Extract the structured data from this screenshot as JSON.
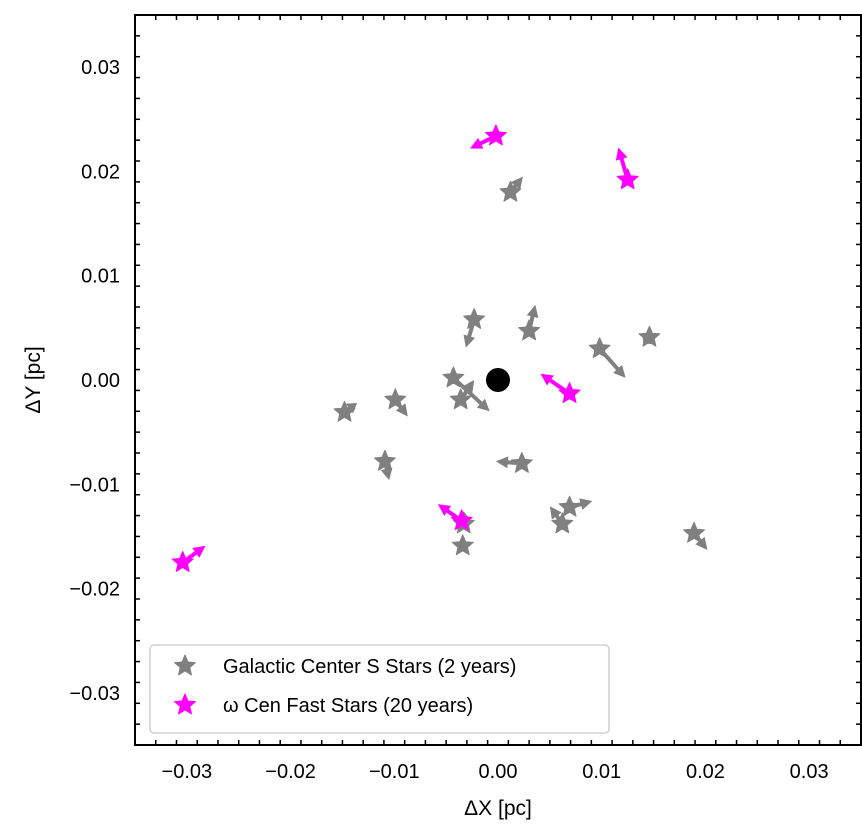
{
  "chart_data": {
    "type": "scatter",
    "xlabel": "ΔX [pc]",
    "ylabel": "ΔY [pc]",
    "xlim": [
      -0.035,
      0.035
    ],
    "ylim": [
      -0.035,
      0.035
    ],
    "xticks": [
      -0.03,
      -0.02,
      -0.01,
      0.0,
      0.01,
      0.02,
      0.03
    ],
    "yticks": [
      -0.03,
      -0.02,
      -0.01,
      0.0,
      0.01,
      0.02,
      0.03
    ],
    "xtick_labels": [
      "−0.03",
      "−0.02",
      "−0.01",
      "0.00",
      "0.01",
      "0.02",
      "0.03"
    ],
    "ytick_labels": [
      "−0.03",
      "−0.02",
      "−0.01",
      "0.00",
      "0.01",
      "0.02",
      "0.03"
    ],
    "legend_position": "bottom-left",
    "center": {
      "x": 0.0,
      "y": 0.0,
      "color": "#000000"
    },
    "series": [
      {
        "name": "Galactic Center S Stars (2 years)",
        "color": "#808080",
        "marker": "star",
        "points": [
          {
            "x": 0.0012,
            "y": 0.018,
            "dx": 0.0012,
            "dy": 0.0015
          },
          {
            "x": -0.0023,
            "y": 0.0058,
            "dx": -0.0008,
            "dy": -0.0027
          },
          {
            "x": 0.003,
            "y": 0.0047,
            "dx": 0.0006,
            "dy": 0.0025
          },
          {
            "x": 0.0098,
            "y": 0.003,
            "dx": 0.0025,
            "dy": -0.0028
          },
          {
            "x": 0.0146,
            "y": 0.0041,
            "dx": -0.0006,
            "dy": -0.0006
          },
          {
            "x": -0.0043,
            "y": 0.0002,
            "dx": 0.0035,
            "dy": -0.0032
          },
          {
            "x": -0.0036,
            "y": -0.0019,
            "dx": 0.0013,
            "dy": 0.0019
          },
          {
            "x": -0.0148,
            "y": -0.0031,
            "dx": 0.0012,
            "dy": 0.0009
          },
          {
            "x": -0.0099,
            "y": -0.0019,
            "dx": 0.0012,
            "dy": -0.0016
          },
          {
            "x": -0.0109,
            "y": -0.0078,
            "dx": 0.0004,
            "dy": -0.0018
          },
          {
            "x": 0.0023,
            "y": -0.008,
            "dx": -0.0025,
            "dy": 0.0002
          },
          {
            "x": 0.0069,
            "y": -0.0122,
            "dx": 0.0022,
            "dy": 0.0006
          },
          {
            "x": 0.0062,
            "y": -0.0138,
            "dx": -0.0012,
            "dy": 0.0017
          },
          {
            "x": -0.0033,
            "y": -0.0138,
            "dx": 0.0,
            "dy": 0.0012
          },
          {
            "x": -0.0034,
            "y": -0.0159,
            "dx": 0.0,
            "dy": 0.0
          },
          {
            "x": 0.0189,
            "y": -0.0147,
            "dx": 0.0013,
            "dy": -0.0016
          }
        ]
      },
      {
        "name": "ω Cen Fast Stars (20 years)",
        "color": "#ff00ff",
        "marker": "star",
        "points": [
          {
            "x": -0.0002,
            "y": 0.0234,
            "dx": -0.0025,
            "dy": -0.0012
          },
          {
            "x": 0.0125,
            "y": 0.0192,
            "dx": -0.0009,
            "dy": 0.0031
          },
          {
            "x": 0.0069,
            "y": -0.0013,
            "dx": -0.0028,
            "dy": 0.0019
          },
          {
            "x": -0.0035,
            "y": -0.0135,
            "dx": -0.0023,
            "dy": 0.0016
          },
          {
            "x": -0.0304,
            "y": -0.0175,
            "dx": 0.0022,
            "dy": 0.0016
          }
        ]
      }
    ]
  }
}
